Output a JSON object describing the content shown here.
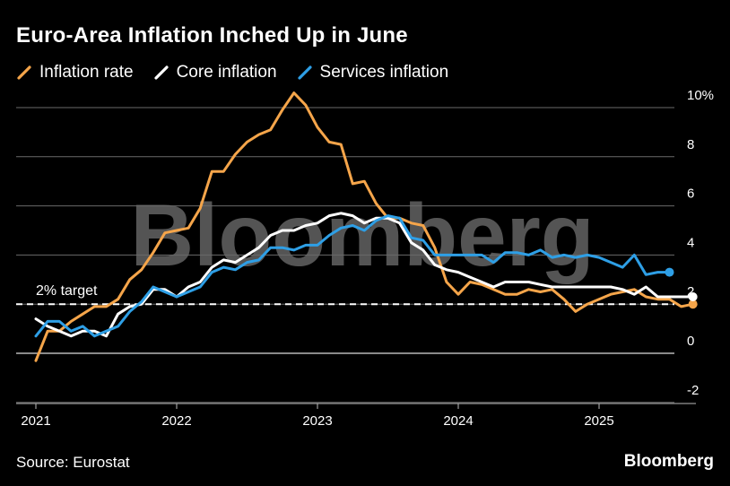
{
  "title": "Euro-Area Inflation Inched Up in June",
  "source": "Source: Eurostat",
  "brand": "Bloomberg",
  "watermark": "Bloomberg",
  "chart_data": {
    "type": "line",
    "title": "Euro-Area Inflation Inched Up in June",
    "y_unit": "%",
    "ylim": [
      -2.5,
      10.5
    ],
    "y_ticks": [
      10,
      8,
      6,
      4,
      2,
      0,
      -2
    ],
    "y_tick_labels": [
      "10%",
      "8",
      "6",
      "4",
      "2",
      "0",
      "-2"
    ],
    "x_tick_labels": [
      "2021",
      "2022",
      "2023",
      "2024",
      "2025"
    ],
    "grid": "horizontal",
    "legend_position": "top-left",
    "reference_line": {
      "value": 2,
      "label": "2% target"
    },
    "series": [
      {
        "name": "Inflation rate",
        "color": "#f5a54a",
        "x_start": "2021-01",
        "frequency": "monthly",
        "values": [
          -0.3,
          0.9,
          0.9,
          1.3,
          1.6,
          1.9,
          1.9,
          2.2,
          3.0,
          3.4,
          4.1,
          4.9,
          5.0,
          5.1,
          5.9,
          7.4,
          7.4,
          8.1,
          8.6,
          8.9,
          9.1,
          9.9,
          10.6,
          10.1,
          9.2,
          8.6,
          8.5,
          6.9,
          7.0,
          6.1,
          5.5,
          5.5,
          5.3,
          5.2,
          4.3,
          2.9,
          2.4,
          2.9,
          2.8,
          2.6,
          2.4,
          2.4,
          2.6,
          2.5,
          2.6,
          2.2,
          1.7,
          2.0,
          2.2,
          2.4,
          2.5,
          2.6,
          2.3,
          2.2,
          2.2,
          1.9,
          2.0
        ],
        "last_value_marker": 2.0
      },
      {
        "name": "Core inflation",
        "color": "#ffffff",
        "x_start": "2021-01",
        "frequency": "monthly",
        "values": [
          1.4,
          1.1,
          0.9,
          0.7,
          0.9,
          0.9,
          0.7,
          1.6,
          1.9,
          2.0,
          2.6,
          2.6,
          2.3,
          2.7,
          2.9,
          3.5,
          3.8,
          3.7,
          4.0,
          4.3,
          4.8,
          5.0,
          5.0,
          5.2,
          5.3,
          5.6,
          5.7,
          5.6,
          5.3,
          5.5,
          5.5,
          5.3,
          4.5,
          4.2,
          3.6,
          3.4,
          3.3,
          3.1,
          2.9,
          2.7,
          2.9,
          2.9,
          2.9,
          2.8,
          2.7,
          2.7,
          2.7,
          2.7,
          2.7,
          2.7,
          2.6,
          2.4,
          2.7,
          2.3,
          2.3,
          2.3,
          2.3
        ],
        "last_value_marker": 2.3
      },
      {
        "name": "Services inflation",
        "color": "#2e9fe6",
        "x_start": "2021-01",
        "frequency": "monthly",
        "values": [
          0.7,
          1.3,
          1.3,
          0.9,
          1.1,
          0.7,
          0.9,
          1.1,
          1.7,
          2.1,
          2.7,
          2.5,
          2.3,
          2.5,
          2.7,
          3.3,
          3.5,
          3.4,
          3.7,
          3.8,
          4.3,
          4.3,
          4.2,
          4.4,
          4.4,
          4.8,
          5.1,
          5.2,
          5.0,
          5.4,
          5.6,
          5.5,
          4.7,
          4.6,
          4.0,
          4.0,
          4.0,
          4.0,
          4.0,
          3.7,
          4.1,
          4.1,
          4.0,
          4.2,
          3.9,
          4.0,
          3.9,
          4.0,
          3.9,
          3.7,
          3.5,
          4.0,
          3.2,
          3.3,
          3.3
        ],
        "last_value_marker": 3.3
      }
    ]
  }
}
